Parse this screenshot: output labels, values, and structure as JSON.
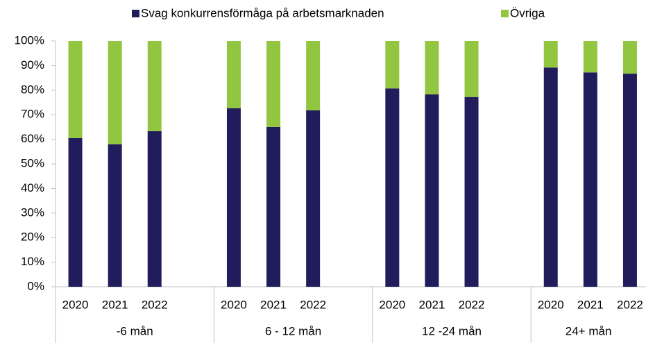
{
  "chart_data": {
    "type": "stacked_bar",
    "categories": [
      "2020",
      "2021",
      "2022",
      null,
      "2020",
      "2021",
      "2022",
      null,
      "2020",
      "2021",
      "2022",
      null,
      "2020",
      "2021",
      "2022"
    ],
    "groups": [
      "-6 mån",
      "6 - 12 mån",
      "12 -24 mån",
      "24+ mån"
    ],
    "series": [
      {
        "name": "Svag konkurrensförmåga på arbetsmarknaden",
        "color": "#211c5c",
        "values": [
          60.5,
          58,
          63.3,
          null,
          72.6,
          65,
          71.8,
          null,
          80.7,
          78.3,
          77.2,
          null,
          89.2,
          87.2,
          86.7
        ]
      },
      {
        "name": "Övriga",
        "color": "#92c640",
        "values": [
          39.5,
          42,
          36.7,
          null,
          27.4,
          35,
          28.2,
          null,
          19.3,
          21.7,
          22.8,
          null,
          10.8,
          12.8,
          13.3
        ]
      }
    ],
    "ylim": [
      0,
      100
    ],
    "yticks": [
      {
        "value": 0,
        "label": "0%"
      },
      {
        "value": 10,
        "label": "10%"
      },
      {
        "value": 20,
        "label": "20%"
      },
      {
        "value": 30,
        "label": "30%"
      },
      {
        "value": 40,
        "label": "40%"
      },
      {
        "value": 50,
        "label": "50%"
      },
      {
        "value": 60,
        "label": "60%"
      },
      {
        "value": 70,
        "label": "70%"
      },
      {
        "value": 80,
        "label": "80%"
      },
      {
        "value": 90,
        "label": "90%"
      },
      {
        "value": 100,
        "label": "100%"
      }
    ],
    "legend": "top"
  }
}
